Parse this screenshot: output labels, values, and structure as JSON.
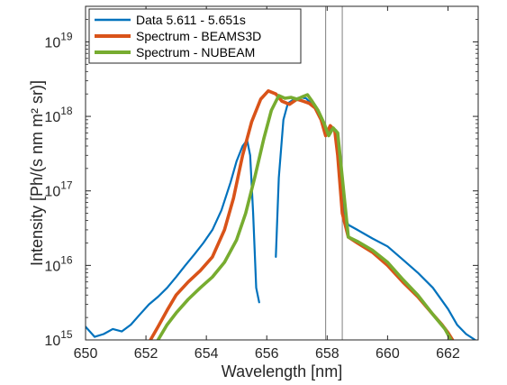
{
  "chart_data": {
    "type": "line",
    "title": "",
    "xlabel": "Wavelength [nm]",
    "ylabel": "Intensity [Ph/(s nm m² sr)]",
    "xlim": [
      650,
      663
    ],
    "ylim": [
      1000000000000000.0,
      3e+19
    ],
    "yscale": "log",
    "xticks": [
      650,
      652,
      654,
      656,
      658,
      660,
      662
    ],
    "xtick_labels": [
      "650",
      "652",
      "654",
      "656",
      "658",
      "660",
      "662"
    ],
    "yticks": [
      1000000000000000.0,
      1e+16,
      1e+17,
      1e+18,
      1e+19
    ],
    "ytick_labels": [
      {
        "base": "10",
        "exp": "15"
      },
      {
        "base": "10",
        "exp": "16"
      },
      {
        "base": "10",
        "exp": "17"
      },
      {
        "base": "10",
        "exp": "18"
      },
      {
        "base": "10",
        "exp": "19"
      }
    ],
    "vlines": [
      657.95,
      658.5
    ],
    "vline_color": "#808080",
    "legend_position": "top-left",
    "series": [
      {
        "name": "Data 5.611 - 5.651s",
        "color": "#0072BD",
        "segments": [
          {
            "x": [
              650.0,
              650.3,
              650.6,
              650.9,
              651.2,
              651.5,
              651.8,
              652.1,
              652.4,
              652.7,
              653.0,
              653.3,
              653.6,
              653.9,
              654.2,
              654.5,
              654.8,
              655.0,
              655.2,
              655.35,
              655.45,
              655.55,
              655.65,
              655.75
            ],
            "y": [
              1500000000000000.0,
              1100000000000000.0,
              1200000000000000.0,
              1400000000000000.0,
              1300000000000000.0,
              1600000000000000.0,
              2200000000000000.0,
              3000000000000000.0,
              3800000000000000.0,
              5000000000000000.0,
              7000000000000000.0,
              1e+16,
              1.4e+16,
              2e+16,
              3e+16,
              5.5e+16,
              1.3e+17,
              2.5e+17,
              4e+17,
              4.8e+17,
              3e+17,
              5e+16,
              5000000000000000.0,
              3200000000000000.0
            ]
          },
          {
            "x": [
              656.3,
              656.4,
              656.55,
              656.7,
              656.9,
              657.1,
              657.3,
              657.5,
              657.7,
              657.85,
              658.0,
              658.15,
              658.3,
              658.45,
              658.55,
              658.7,
              659.0,
              659.5,
              660.0,
              660.5,
              661.0,
              661.5,
              662.0,
              662.3,
              662.6,
              662.9
            ],
            "y": [
              1.3e+16,
              1.5e+17,
              9e+17,
              1.5e+18,
              1.7e+18,
              1.8e+18,
              1.75e+18,
              1.45e+18,
              1.15e+18,
              8e+17,
              6e+17,
              7e+17,
              6.5e+17,
              2e+17,
              5e+16,
              3.5e+16,
              3e+16,
              2.3e+16,
              1.8e+16,
              1.2e+16,
              8000000000000000.0,
              5000000000000000.0,
              2600000000000000.0,
              1600000000000000.0,
              1200000000000000.0,
              1000000000000000.0
            ]
          }
        ]
      },
      {
        "name": "Spectrum - BEAMS3D",
        "color": "#D95319",
        "x": [
          652.15,
          652.4,
          652.7,
          653.0,
          653.4,
          653.8,
          654.2,
          654.6,
          654.9,
          655.2,
          655.5,
          655.8,
          656.05,
          656.3,
          656.5,
          656.75,
          657.0,
          657.2,
          657.4,
          657.6,
          657.8,
          657.95,
          658.1,
          658.25,
          658.35,
          658.5,
          658.7,
          659.0,
          659.5,
          660.0,
          660.5,
          661.0,
          661.5,
          661.8,
          662.0,
          662.15
        ],
        "y": [
          1000000000000000.0,
          1500000000000000.0,
          2500000000000000.0,
          4000000000000000.0,
          6000000000000000.0,
          8500000000000000.0,
          1.3e+16,
          3e+16,
          8e+16,
          3e+17,
          8.5e+17,
          1.7e+18,
          2.2e+18,
          2e+18,
          1.6e+18,
          1.45e+18,
          1.7e+18,
          1.6e+18,
          1.5e+18,
          1.3e+18,
          9e+17,
          5.5e+17,
          7.5e+17,
          6.5e+17,
          3e+17,
          5e+16,
          2.4e+16,
          2e+16,
          1.5e+16,
          1e+16,
          6000000000000000.0,
          3800000000000000.0,
          2200000000000000.0,
          1600000000000000.0,
          1250000000000000.0,
          1000000000000000.0
        ]
      },
      {
        "name": "Spectrum - NUBEAM",
        "color": "#77AC30",
        "x": [
          652.4,
          652.7,
          653.0,
          653.4,
          653.8,
          654.2,
          654.6,
          655.0,
          655.3,
          655.6,
          655.9,
          656.15,
          656.4,
          656.6,
          656.8,
          657.0,
          657.2,
          657.35,
          657.5,
          657.7,
          657.9,
          658.05,
          658.2,
          658.35,
          658.5,
          658.7,
          659.0,
          659.5,
          660.0,
          660.5,
          661.0,
          661.5,
          661.9,
          662.1
        ],
        "y": [
          1000000000000000.0,
          1600000000000000.0,
          2300000000000000.0,
          3500000000000000.0,
          5000000000000000.0,
          7000000000000000.0,
          1.1e+16,
          2.2e+16,
          5e+16,
          1.5e+17,
          5e+17,
          1.2e+18,
          1.9e+18,
          1.75e+18,
          1.8e+18,
          1.7e+18,
          1.85e+18,
          1.95e+18,
          1.6e+18,
          1.2e+18,
          8e+17,
          5.5e+17,
          7e+17,
          6e+17,
          1.5e+17,
          2.4e+16,
          2.1e+16,
          1.6e+16,
          1.1e+16,
          6500000000000000.0,
          4000000000000000.0,
          2200000000000000.0,
          1400000000000000.0,
          1000000000000000.0
        ]
      }
    ]
  }
}
